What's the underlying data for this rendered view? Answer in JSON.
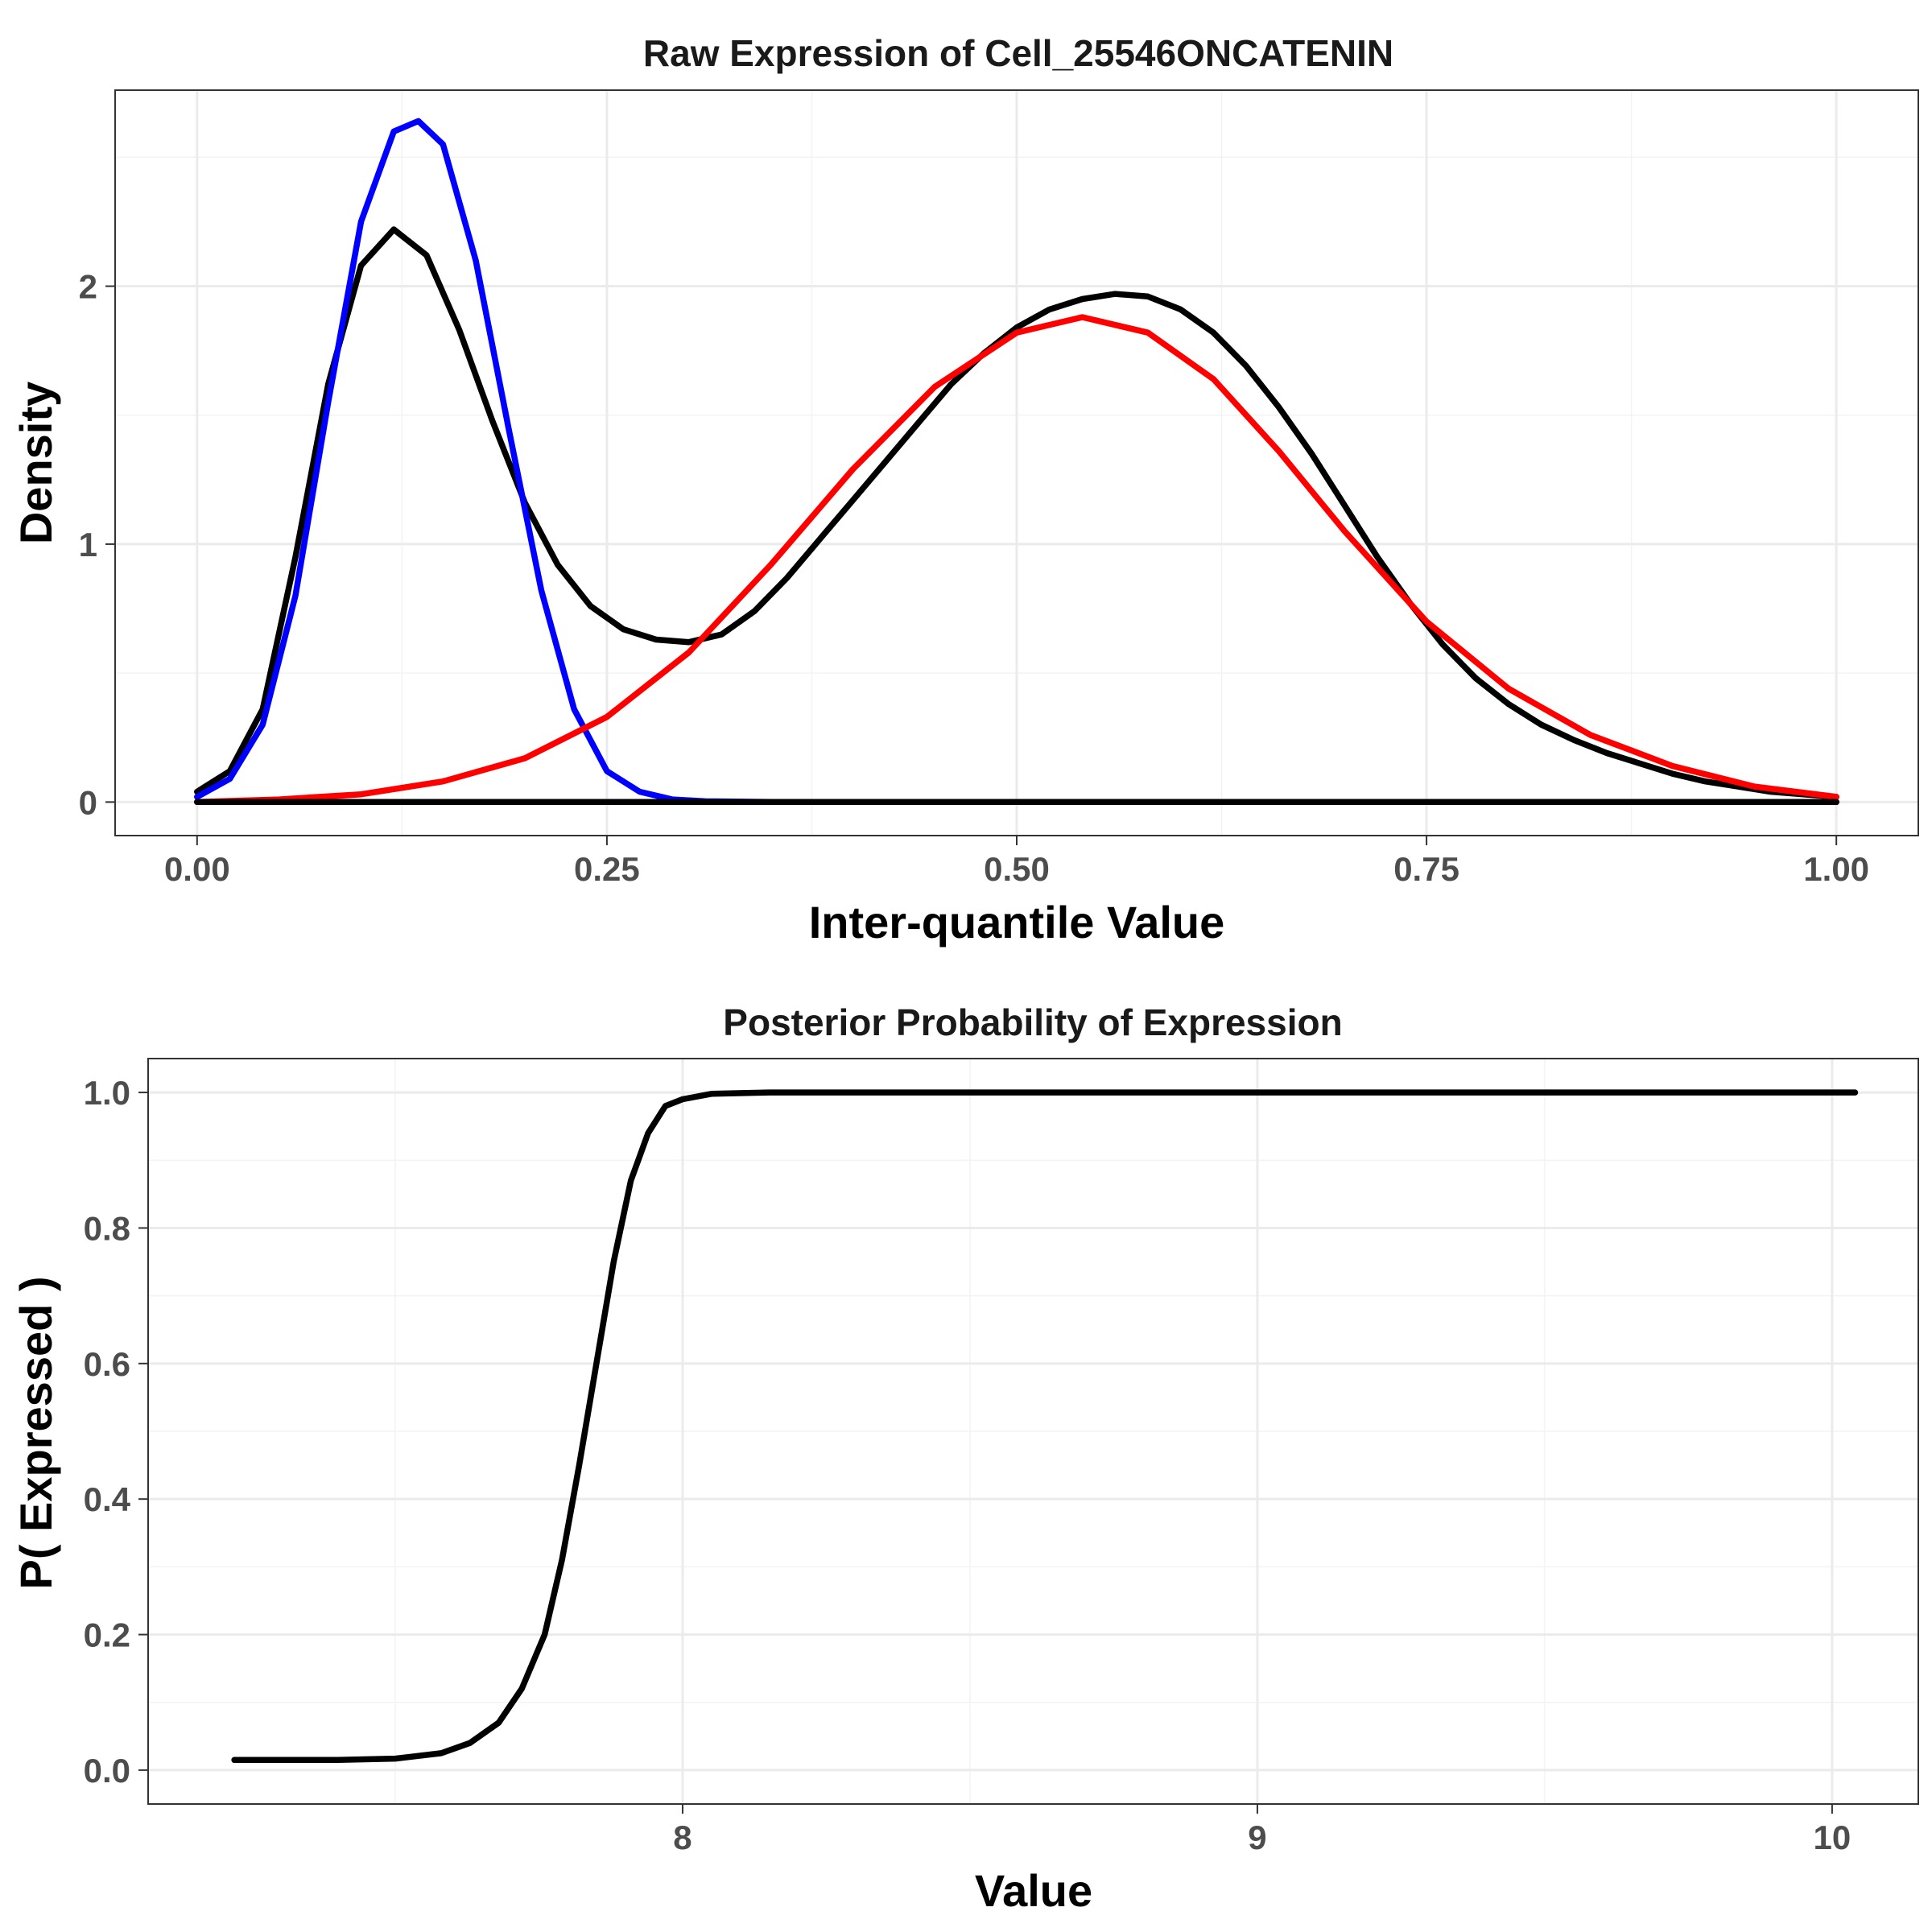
{
  "chart_data": [
    {
      "type": "line",
      "title": "Raw Expression of Cell_25546ONCATENIN",
      "xlabel": "Inter-quantile Value",
      "ylabel": "Density",
      "xlim": [
        -0.05,
        1.05
      ],
      "ylim": [
        -0.13,
        2.76
      ],
      "x_ticks": [
        0,
        0.25,
        0.5,
        0.75,
        1
      ],
      "x_tick_labels": [
        "0.00",
        "0.25",
        "0.50",
        "0.75",
        "1.00"
      ],
      "x_minor_ticks": [
        0.125,
        0.375,
        0.625,
        0.875
      ],
      "y_ticks": [
        0,
        1,
        2
      ],
      "y_tick_labels": [
        "0",
        "1",
        "2"
      ],
      "y_minor_ticks": [
        0.5,
        1.5,
        2.5
      ],
      "grid": true,
      "legend": "none",
      "series": [
        {
          "color": "#000000",
          "x": [
            0,
            0.02,
            0.04,
            0.06,
            0.08,
            0.1,
            0.12,
            0.14,
            0.16,
            0.18,
            0.2,
            0.22,
            0.24,
            0.26,
            0.28,
            0.3,
            0.32,
            0.34,
            0.36,
            0.38,
            0.4,
            0.42,
            0.44,
            0.46,
            0.48,
            0.5,
            0.52,
            0.54,
            0.56,
            0.58,
            0.6,
            0.62,
            0.64,
            0.66,
            0.68,
            0.7,
            0.72,
            0.74,
            0.76,
            0.78,
            0.8,
            0.82,
            0.84,
            0.86,
            0.88,
            0.9,
            0.92,
            0.94,
            0.96,
            0.98,
            1
          ],
          "y": [
            0.04,
            0.12,
            0.36,
            0.95,
            1.62,
            2.08,
            2.22,
            2.12,
            1.83,
            1.48,
            1.16,
            0.92,
            0.76,
            0.67,
            0.63,
            0.62,
            0.65,
            0.74,
            0.87,
            1.02,
            1.17,
            1.32,
            1.47,
            1.62,
            1.74,
            1.84,
            1.91,
            1.95,
            1.97,
            1.96,
            1.91,
            1.82,
            1.69,
            1.53,
            1.35,
            1.15,
            0.95,
            0.77,
            0.61,
            0.48,
            0.38,
            0.3,
            0.24,
            0.19,
            0.15,
            0.11,
            0.08,
            0.06,
            0.04,
            0.03,
            0.02
          ]
        },
        {
          "color": "#0000ff",
          "x": [
            0,
            0.02,
            0.04,
            0.06,
            0.08,
            0.1,
            0.12,
            0.135,
            0.15,
            0.17,
            0.19,
            0.21,
            0.23,
            0.25,
            0.27,
            0.29,
            0.31,
            0.35,
            0.4,
            0.5,
            0.6,
            0.7,
            0.8,
            0.9,
            1
          ],
          "y": [
            0.02,
            0.09,
            0.3,
            0.8,
            1.55,
            2.25,
            2.6,
            2.64,
            2.55,
            2.1,
            1.45,
            0.82,
            0.36,
            0.12,
            0.04,
            0.01,
            0.003,
            0,
            0,
            0,
            0,
            0,
            0,
            0,
            0
          ]
        },
        {
          "color": "#ff0000",
          "x": [
            0,
            0.05,
            0.1,
            0.15,
            0.2,
            0.25,
            0.3,
            0.35,
            0.4,
            0.45,
            0.5,
            0.54,
            0.58,
            0.62,
            0.66,
            0.7,
            0.75,
            0.8,
            0.85,
            0.9,
            0.95,
            1
          ],
          "y": [
            0,
            0.01,
            0.03,
            0.08,
            0.17,
            0.33,
            0.58,
            0.92,
            1.29,
            1.61,
            1.82,
            1.88,
            1.82,
            1.64,
            1.36,
            1.05,
            0.7,
            0.44,
            0.26,
            0.14,
            0.06,
            0.02
          ]
        },
        {
          "color": "#000000",
          "x": [
            0,
            1
          ],
          "y": [
            0,
            0
          ]
        }
      ]
    },
    {
      "type": "line",
      "title": "Posterior Probability of Expression",
      "xlabel": "Value",
      "ylabel": "P( Expressed )",
      "xlim": [
        7.07,
        10.15
      ],
      "ylim": [
        -0.05,
        1.05
      ],
      "x_ticks": [
        8,
        9,
        10
      ],
      "x_tick_labels": [
        "8",
        "9",
        "10"
      ],
      "x_minor_ticks": [
        7.5,
        8.5,
        9.5
      ],
      "y_ticks": [
        0,
        0.2,
        0.4,
        0.6,
        0.8,
        1
      ],
      "y_tick_labels": [
        "0.0",
        "0.2",
        "0.4",
        "0.6",
        "0.8",
        "1.0"
      ],
      "y_minor_ticks": [
        0.1,
        0.3,
        0.5,
        0.7,
        0.9
      ],
      "grid": true,
      "legend": "none",
      "series": [
        {
          "color": "#000000",
          "x": [
            7.22,
            7.4,
            7.5,
            7.58,
            7.63,
            7.68,
            7.72,
            7.76,
            7.79,
            7.82,
            7.85,
            7.88,
            7.91,
            7.94,
            7.97,
            8.0,
            8.05,
            8.15,
            8.3,
            9.0,
            10.04
          ],
          "y": [
            0.015,
            0.015,
            0.017,
            0.025,
            0.04,
            0.07,
            0.12,
            0.2,
            0.31,
            0.45,
            0.6,
            0.75,
            0.87,
            0.94,
            0.98,
            0.99,
            0.998,
            1.0,
            1.0,
            1.0,
            1.0
          ]
        }
      ]
    }
  ]
}
